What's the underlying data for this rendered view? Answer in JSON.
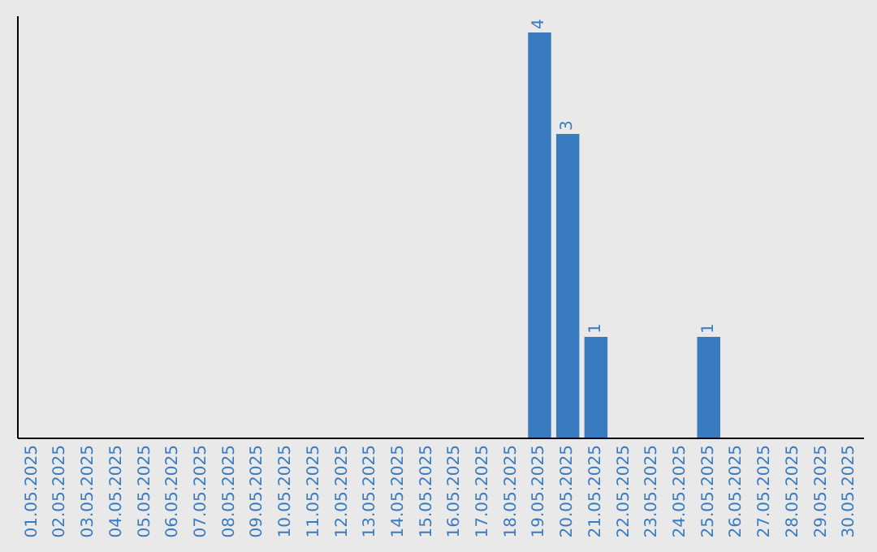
{
  "chart_data": {
    "type": "bar",
    "categories": [
      "01.05.2025",
      "02.05.2025",
      "03.05.2025",
      "04.05.2025",
      "05.05.2025",
      "06.05.2025",
      "07.05.2025",
      "08.05.2025",
      "09.05.2025",
      "10.05.2025",
      "11.05.2025",
      "12.05.2025",
      "13.05.2025",
      "14.05.2025",
      "15.05.2025",
      "16.05.2025",
      "17.05.2025",
      "18.05.2025",
      "19.05.2025",
      "20.05.2025",
      "21.05.2025",
      "22.05.2025",
      "23.05.2025",
      "24.05.2025",
      "25.05.2025",
      "26.05.2025",
      "27.05.2025",
      "28.05.2025",
      "29.05.2025",
      "30.05.2025"
    ],
    "values": [
      null,
      null,
      null,
      null,
      null,
      null,
      null,
      null,
      null,
      null,
      null,
      null,
      null,
      null,
      null,
      null,
      null,
      null,
      4,
      3,
      1,
      null,
      null,
      null,
      1,
      null,
      null,
      null,
      null,
      null
    ],
    "value_labels": [
      null,
      null,
      null,
      null,
      null,
      null,
      null,
      null,
      null,
      null,
      null,
      null,
      null,
      null,
      null,
      null,
      null,
      null,
      "4",
      "3",
      "1",
      null,
      null,
      null,
      "1",
      null,
      null,
      null,
      null,
      null
    ],
    "color": "#3a7bbf"
  }
}
